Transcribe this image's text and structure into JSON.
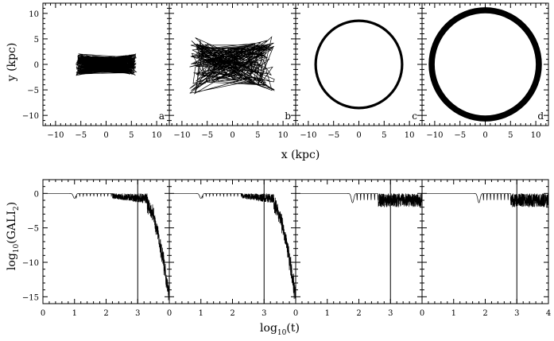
{
  "chart_data": [
    {
      "type": "scatter",
      "role": "orbits",
      "xlabel": "x (kpc)",
      "ylabel": "y (kpc)",
      "xlim": [
        -12.5,
        12.5
      ],
      "ylim": [
        -12,
        12
      ],
      "xticks": [
        -10,
        -5,
        0,
        5,
        10
      ],
      "yticks": [
        -10,
        -5,
        0,
        5,
        10
      ],
      "panels": [
        {
          "label": "a",
          "shape": "bowtie",
          "x_extent": [
            -6,
            6
          ],
          "y_center_halfwidth": 1.6,
          "y_edge_halfwidth": 2.5
        },
        {
          "label": "b",
          "shape": "bowtie",
          "x_extent": [
            -8.5,
            8.5
          ],
          "y_center_halfwidth": 3.2,
          "y_edge_halfwidth": 6.5
        },
        {
          "label": "c",
          "shape": "ring",
          "radius_inner": 8.3,
          "radius_outer": 8.8
        },
        {
          "label": "d",
          "shape": "ring",
          "radius_inner": 10.0,
          "radius_outer": 11.2
        }
      ]
    },
    {
      "type": "line",
      "role": "gali",
      "xlabel": "log10(t)",
      "ylabel": "log10(GALI2)",
      "xlim": [
        0,
        4
      ],
      "ylim": [
        -16,
        2
      ],
      "xticks": [
        0,
        1,
        2,
        3,
        4
      ],
      "x_tick_labels": [
        "0",
        "1",
        "2",
        "3",
        "0",
        "1",
        "2",
        "3",
        "0",
        "1",
        "2",
        "3",
        "0",
        "1",
        "2",
        "3",
        "4"
      ],
      "yticks": [
        0,
        -5,
        -10,
        -15
      ],
      "vertical_marker_x": 3,
      "panels": [
        {
          "label": "a",
          "behavior": "decay",
          "dip_at": 1.0,
          "noise_start": 2.2,
          "decay_start": 3.3,
          "end_value": -15
        },
        {
          "label": "b",
          "behavior": "decay",
          "dip_at": 1.0,
          "noise_start": 2.3,
          "decay_start": 3.3,
          "end_value": -15
        },
        {
          "label": "c",
          "behavior": "oscillate",
          "dip_at": 1.8,
          "noise_start": 2.6,
          "band": [
            -2.0,
            0.0
          ]
        },
        {
          "label": "d",
          "behavior": "oscillate",
          "dip_at": 1.8,
          "noise_start": 2.8,
          "band": [
            -2.0,
            0.0
          ]
        }
      ]
    }
  ],
  "labels": {
    "top_y_prefix": "y (kpc)",
    "top_x_title": "x (kpc)",
    "bottom_x_base": "log",
    "bottom_x_sub": "10",
    "bottom_x_rest": "(t)",
    "bottom_y_base": "log",
    "bottom_y_sub": "10",
    "bottom_y_mid": "(GALI",
    "bottom_y_sub2": "2",
    "bottom_y_rest": ")"
  }
}
